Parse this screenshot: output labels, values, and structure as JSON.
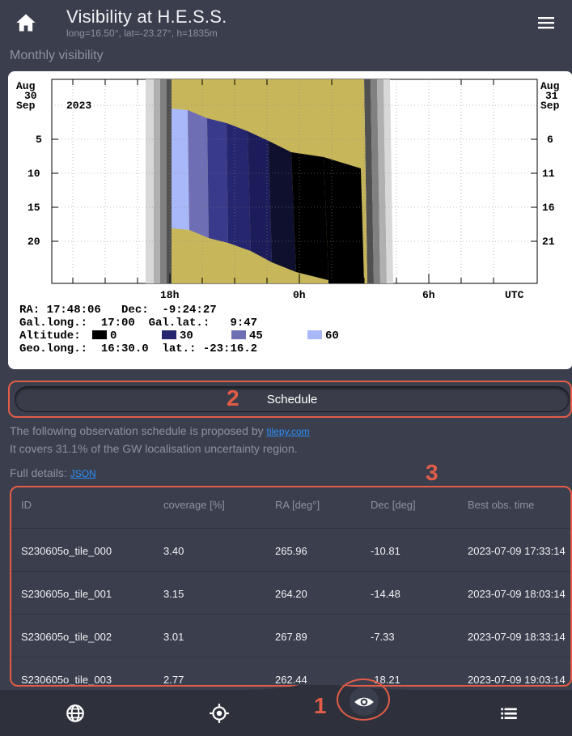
{
  "header": {
    "title": "Visibility at H.E.S.S.",
    "subtitle": "long=16.50°, lat=-23.27°, h=1835m"
  },
  "section_title": "Monthly visibility",
  "chart": {
    "left_month_top": "Aug",
    "left_day_top": "30",
    "left_month_bottom": "Sep",
    "year": "2023",
    "left_days": [
      "5",
      "10",
      "15",
      "20"
    ],
    "right_month_top": "Aug",
    "right_day_top": "31",
    "right_month_bottom": "Sep",
    "right_days": [
      "6",
      "11",
      "16",
      "21"
    ],
    "x_ticks": [
      "18h",
      "0h",
      "6h",
      "UTC"
    ],
    "info_lines": {
      "ra": "RA: 17:48:06   Dec:  -9:24:27",
      "gal": "Gal.long.:  17:00  Gal.lat.:   9:47",
      "altitude_label": "Altitude:",
      "alt_levels": [
        "0",
        "30",
        "45",
        "60"
      ],
      "geo": "Geo.long.:  16:30.0  lat.: -23:16.2"
    },
    "colors": {
      "night": "#c7b65a",
      "alt0": "#000000",
      "alt30": "#1c1c5a",
      "alt45": "#3a3a8c",
      "alt50": "#6e6eb4",
      "alt60": "#a8b8f8"
    }
  },
  "schedule": {
    "button_label": "Schedule"
  },
  "annotations": [
    "1",
    "2",
    "3"
  ],
  "info": {
    "line1_prefix": "The following observation schedule is proposed by ",
    "line1_link": "tilepy.com",
    "line2": "It covers 31.1% of the GW localisation uncertainty region.",
    "line3_prefix": "Full details: ",
    "line3_link": "JSON"
  },
  "table": {
    "headers": [
      "ID",
      "coverage [%]",
      "RA [deg°]",
      "Dec [deg]",
      "Best obs. time"
    ],
    "rows": [
      [
        "S230605o_tile_000",
        "3.40",
        "265.96",
        "-10.81",
        "2023-07-09 17:33:14"
      ],
      [
        "S230605o_tile_001",
        "3.15",
        "264.20",
        "-14.48",
        "2023-07-09 18:03:14"
      ],
      [
        "S230605o_tile_002",
        "3.01",
        "267.89",
        "-7.33",
        "2023-07-09 18:33:14"
      ],
      [
        "S230605o_tile_003",
        "2.77",
        "262.44",
        "-18.21",
        "2023-07-09 19:03:14"
      ]
    ]
  },
  "nav": {
    "items": [
      "globe-icon",
      "target-icon",
      "eye-icon",
      "list-icon"
    ],
    "active": "eye-icon"
  }
}
